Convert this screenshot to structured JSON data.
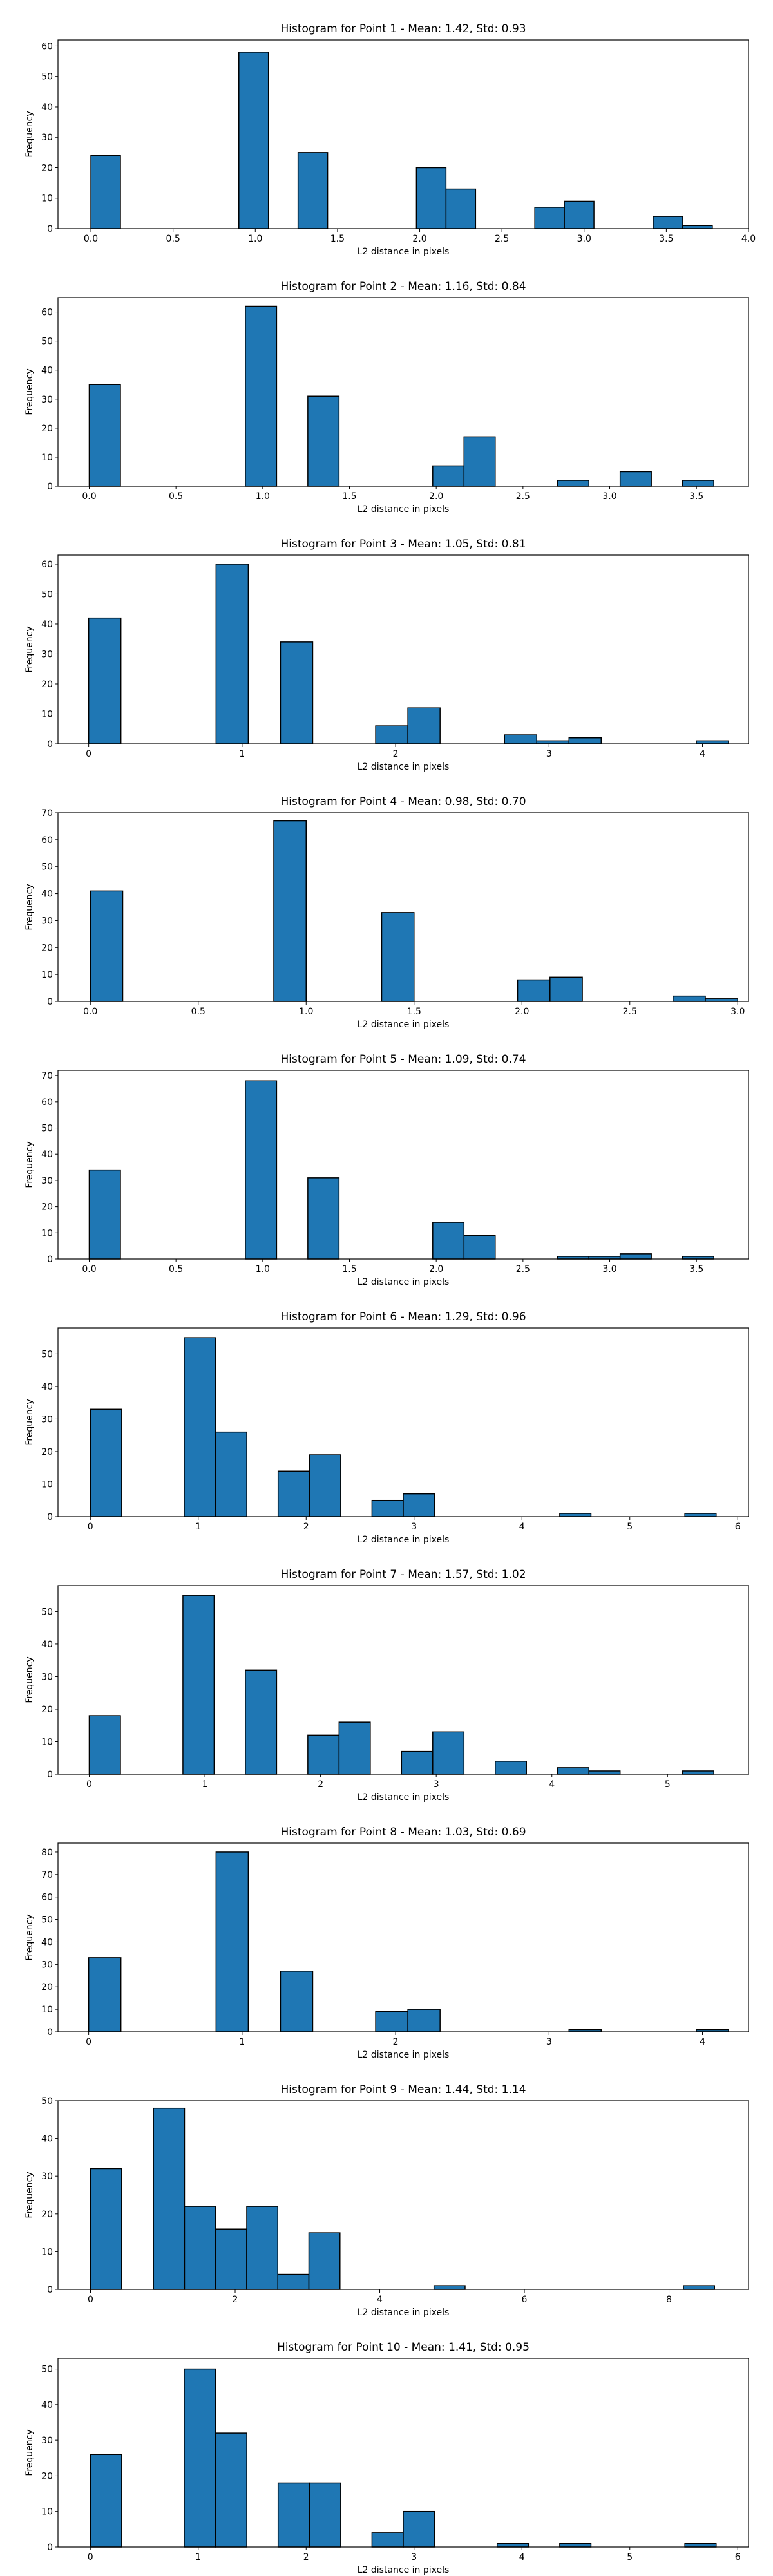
{
  "colors": {
    "bar_fill": "#1f77b4",
    "bar_edge": "#000000"
  },
  "chart_data": [
    {
      "type": "bar",
      "title": "Histogram for Point 1 - Mean: 1.42, Std: 0.93",
      "xlabel": "L2 distance in pixels",
      "ylabel": "Frequency",
      "xlim": [
        -0.2,
        4.0
      ],
      "ylim": [
        0,
        62
      ],
      "xticks": [
        0.0,
        0.5,
        1.0,
        1.5,
        2.0,
        2.5,
        3.0,
        3.5,
        4.0
      ],
      "xtick_labels": [
        "0.0",
        "0.5",
        "1.0",
        "1.5",
        "2.0",
        "2.5",
        "3.0",
        "3.5",
        "4.0"
      ],
      "yticks": [
        0,
        10,
        20,
        30,
        40,
        50,
        60
      ],
      "ytick_labels": [
        "0",
        "10",
        "20",
        "30",
        "40",
        "50",
        "60"
      ],
      "bins": [
        {
          "x0": 0.0,
          "x1": 0.18,
          "value": 24
        },
        {
          "x0": 0.9,
          "x1": 1.08,
          "value": 58
        },
        {
          "x0": 1.26,
          "x1": 1.44,
          "value": 25
        },
        {
          "x0": 1.98,
          "x1": 2.16,
          "value": 20
        },
        {
          "x0": 2.16,
          "x1": 2.34,
          "value": 13
        },
        {
          "x0": 2.7,
          "x1": 2.88,
          "value": 7
        },
        {
          "x0": 2.88,
          "x1": 3.06,
          "value": 9
        },
        {
          "x0": 3.42,
          "x1": 3.6,
          "value": 4
        },
        {
          "x0": 3.6,
          "x1": 3.78,
          "value": 1
        }
      ]
    },
    {
      "type": "bar",
      "title": "Histogram for Point 2 - Mean: 1.16, Std: 0.84",
      "xlabel": "L2 distance in pixels",
      "ylabel": "Frequency",
      "xlim": [
        -0.18,
        3.8
      ],
      "ylim": [
        0,
        65
      ],
      "xticks": [
        0.0,
        0.5,
        1.0,
        1.5,
        2.0,
        2.5,
        3.0,
        3.5
      ],
      "xtick_labels": [
        "0.0",
        "0.5",
        "1.0",
        "1.5",
        "2.0",
        "2.5",
        "3.0",
        "3.5"
      ],
      "yticks": [
        0,
        10,
        20,
        30,
        40,
        50,
        60
      ],
      "ytick_labels": [
        "0",
        "10",
        "20",
        "30",
        "40",
        "50",
        "60"
      ],
      "bins": [
        {
          "x0": 0.0,
          "x1": 0.18,
          "value": 35
        },
        {
          "x0": 0.9,
          "x1": 1.08,
          "value": 62
        },
        {
          "x0": 1.26,
          "x1": 1.44,
          "value": 31
        },
        {
          "x0": 1.98,
          "x1": 2.16,
          "value": 7
        },
        {
          "x0": 2.16,
          "x1": 2.34,
          "value": 17
        },
        {
          "x0": 2.7,
          "x1": 2.88,
          "value": 2
        },
        {
          "x0": 3.06,
          "x1": 3.24,
          "value": 5
        },
        {
          "x0": 3.42,
          "x1": 3.6,
          "value": 2
        }
      ]
    },
    {
      "type": "bar",
      "title": "Histogram for Point 3 - Mean: 1.05, Std: 0.81",
      "xlabel": "L2 distance in pixels",
      "ylabel": "Frequency",
      "xlim": [
        -0.2,
        4.3
      ],
      "ylim": [
        0,
        63
      ],
      "xticks": [
        0,
        1,
        2,
        3,
        4
      ],
      "xtick_labels": [
        "0",
        "1",
        "2",
        "3",
        "4"
      ],
      "yticks": [
        0,
        10,
        20,
        30,
        40,
        50,
        60
      ],
      "ytick_labels": [
        "0",
        "10",
        "20",
        "30",
        "40",
        "50",
        "60"
      ],
      "bins": [
        {
          "x0": 0.0,
          "x1": 0.21,
          "value": 42
        },
        {
          "x0": 0.83,
          "x1": 1.04,
          "value": 60
        },
        {
          "x0": 1.25,
          "x1": 1.46,
          "value": 34
        },
        {
          "x0": 1.87,
          "x1": 2.08,
          "value": 6
        },
        {
          "x0": 2.08,
          "x1": 2.29,
          "value": 12
        },
        {
          "x0": 2.71,
          "x1": 2.92,
          "value": 3
        },
        {
          "x0": 2.92,
          "x1": 3.13,
          "value": 1
        },
        {
          "x0": 3.13,
          "x1": 3.34,
          "value": 2
        },
        {
          "x0": 3.96,
          "x1": 4.17,
          "value": 1
        }
      ]
    },
    {
      "type": "bar",
      "title": "Histogram for Point 4 - Mean: 0.98, Std: 0.70",
      "xlabel": "L2 distance in pixels",
      "ylabel": "Frequency",
      "xlim": [
        -0.15,
        3.05
      ],
      "ylim": [
        0,
        70
      ],
      "xticks": [
        0.0,
        0.5,
        1.0,
        1.5,
        2.0,
        2.5,
        3.0
      ],
      "xtick_labels": [
        "0.0",
        "0.5",
        "1.0",
        "1.5",
        "2.0",
        "2.5",
        "3.0"
      ],
      "yticks": [
        0,
        10,
        20,
        30,
        40,
        50,
        60,
        70
      ],
      "ytick_labels": [
        "0",
        "10",
        "20",
        "30",
        "40",
        "50",
        "60",
        "70"
      ],
      "bins": [
        {
          "x0": 0.0,
          "x1": 0.15,
          "value": 41
        },
        {
          "x0": 0.85,
          "x1": 1.0,
          "value": 67
        },
        {
          "x0": 1.35,
          "x1": 1.5,
          "value": 33
        },
        {
          "x0": 1.98,
          "x1": 2.13,
          "value": 8
        },
        {
          "x0": 2.13,
          "x1": 2.28,
          "value": 9
        },
        {
          "x0": 2.7,
          "x1": 2.85,
          "value": 2
        },
        {
          "x0": 2.85,
          "x1": 3.0,
          "value": 1
        }
      ]
    },
    {
      "type": "bar",
      "title": "Histogram for Point 5 - Mean: 1.09, Std: 0.74",
      "xlabel": "L2 distance in pixels",
      "ylabel": "Frequency",
      "xlim": [
        -0.18,
        3.8
      ],
      "ylim": [
        0,
        72
      ],
      "xticks": [
        0.0,
        0.5,
        1.0,
        1.5,
        2.0,
        2.5,
        3.0,
        3.5
      ],
      "xtick_labels": [
        "0.0",
        "0.5",
        "1.0",
        "1.5",
        "2.0",
        "2.5",
        "3.0",
        "3.5"
      ],
      "yticks": [
        0,
        10,
        20,
        30,
        40,
        50,
        60,
        70
      ],
      "ytick_labels": [
        "0",
        "10",
        "20",
        "30",
        "40",
        "50",
        "60",
        "70"
      ],
      "bins": [
        {
          "x0": 0.0,
          "x1": 0.18,
          "value": 34
        },
        {
          "x0": 0.9,
          "x1": 1.08,
          "value": 68
        },
        {
          "x0": 1.26,
          "x1": 1.44,
          "value": 31
        },
        {
          "x0": 1.98,
          "x1": 2.16,
          "value": 14
        },
        {
          "x0": 2.16,
          "x1": 2.34,
          "value": 9
        },
        {
          "x0": 2.7,
          "x1": 2.88,
          "value": 1
        },
        {
          "x0": 2.88,
          "x1": 3.06,
          "value": 1
        },
        {
          "x0": 3.06,
          "x1": 3.24,
          "value": 2
        },
        {
          "x0": 3.42,
          "x1": 3.6,
          "value": 1
        }
      ]
    },
    {
      "type": "bar",
      "title": "Histogram for Point 6 - Mean: 1.29, Std: 0.96",
      "xlabel": "L2 distance in pixels",
      "ylabel": "Frequency",
      "xlim": [
        -0.3,
        6.1
      ],
      "ylim": [
        0,
        58
      ],
      "xticks": [
        0,
        1,
        2,
        3,
        4,
        5,
        6
      ],
      "xtick_labels": [
        "0",
        "1",
        "2",
        "3",
        "4",
        "5",
        "6"
      ],
      "yticks": [
        0,
        10,
        20,
        30,
        40,
        50
      ],
      "ytick_labels": [
        "0",
        "10",
        "20",
        "30",
        "40",
        "50"
      ],
      "bins": [
        {
          "x0": 0.0,
          "x1": 0.29,
          "value": 33
        },
        {
          "x0": 0.87,
          "x1": 1.16,
          "value": 55
        },
        {
          "x0": 1.16,
          "x1": 1.45,
          "value": 26
        },
        {
          "x0": 1.74,
          "x1": 2.03,
          "value": 14
        },
        {
          "x0": 2.03,
          "x1": 2.32,
          "value": 19
        },
        {
          "x0": 2.61,
          "x1": 2.9,
          "value": 5
        },
        {
          "x0": 2.9,
          "x1": 3.19,
          "value": 7
        },
        {
          "x0": 4.35,
          "x1": 4.64,
          "value": 1
        },
        {
          "x0": 5.51,
          "x1": 5.8,
          "value": 1
        }
      ]
    },
    {
      "type": "bar",
      "title": "Histogram for Point 7 - Mean: 1.57, Std: 1.02",
      "xlabel": "L2 distance in pixels",
      "ylabel": "Frequency",
      "xlim": [
        -0.27,
        5.7
      ],
      "ylim": [
        0,
        58
      ],
      "xticks": [
        0,
        1,
        2,
        3,
        4,
        5
      ],
      "xtick_labels": [
        "0",
        "1",
        "2",
        "3",
        "4",
        "5"
      ],
      "yticks": [
        0,
        10,
        20,
        30,
        40,
        50
      ],
      "ytick_labels": [
        "0",
        "10",
        "20",
        "30",
        "40",
        "50"
      ],
      "bins": [
        {
          "x0": 0.0,
          "x1": 0.27,
          "value": 18
        },
        {
          "x0": 0.81,
          "x1": 1.08,
          "value": 55
        },
        {
          "x0": 1.35,
          "x1": 1.62,
          "value": 32
        },
        {
          "x0": 1.89,
          "x1": 2.16,
          "value": 12
        },
        {
          "x0": 2.16,
          "x1": 2.43,
          "value": 16
        },
        {
          "x0": 2.7,
          "x1": 2.97,
          "value": 7
        },
        {
          "x0": 2.97,
          "x1": 3.24,
          "value": 13
        },
        {
          "x0": 3.51,
          "x1": 3.78,
          "value": 4
        },
        {
          "x0": 4.05,
          "x1": 4.32,
          "value": 2
        },
        {
          "x0": 4.32,
          "x1": 4.59,
          "value": 1
        },
        {
          "x0": 5.13,
          "x1": 5.4,
          "value": 1
        }
      ]
    },
    {
      "type": "bar",
      "title": "Histogram for Point 8 - Mean: 1.03, Std: 0.69",
      "xlabel": "L2 distance in pixels",
      "ylabel": "Frequency",
      "xlim": [
        -0.2,
        4.3
      ],
      "ylim": [
        0,
        84
      ],
      "xticks": [
        0,
        1,
        2,
        3,
        4
      ],
      "xtick_labels": [
        "0",
        "1",
        "2",
        "3",
        "4"
      ],
      "yticks": [
        0,
        10,
        20,
        30,
        40,
        50,
        60,
        70,
        80
      ],
      "ytick_labels": [
        "0",
        "10",
        "20",
        "30",
        "40",
        "50",
        "60",
        "70",
        "80"
      ],
      "bins": [
        {
          "x0": 0.0,
          "x1": 0.21,
          "value": 33
        },
        {
          "x0": 0.83,
          "x1": 1.04,
          "value": 80
        },
        {
          "x0": 1.25,
          "x1": 1.46,
          "value": 27
        },
        {
          "x0": 1.87,
          "x1": 2.08,
          "value": 9
        },
        {
          "x0": 2.08,
          "x1": 2.29,
          "value": 10
        },
        {
          "x0": 3.13,
          "x1": 3.34,
          "value": 1
        },
        {
          "x0": 3.96,
          "x1": 4.17,
          "value": 1
        }
      ]
    },
    {
      "type": "bar",
      "title": "Histogram for Point 9 - Mean: 1.44, Std: 1.14",
      "xlabel": "L2 distance in pixels",
      "ylabel": "Frequency",
      "xlim": [
        -0.45,
        9.1
      ],
      "ylim": [
        0,
        50
      ],
      "xticks": [
        0,
        2,
        4,
        6,
        8
      ],
      "xtick_labels": [
        "0",
        "2",
        "4",
        "6",
        "8"
      ],
      "yticks": [
        0,
        10,
        20,
        30,
        40,
        50
      ],
      "ytick_labels": [
        "0",
        "10",
        "20",
        "30",
        "40",
        "50"
      ],
      "bins": [
        {
          "x0": 0.0,
          "x1": 0.43,
          "value": 32
        },
        {
          "x0": 0.87,
          "x1": 1.3,
          "value": 48
        },
        {
          "x0": 1.3,
          "x1": 1.73,
          "value": 22
        },
        {
          "x0": 1.73,
          "x1": 2.16,
          "value": 16
        },
        {
          "x0": 2.16,
          "x1": 2.59,
          "value": 22
        },
        {
          "x0": 2.59,
          "x1": 3.02,
          "value": 4
        },
        {
          "x0": 3.02,
          "x1": 3.45,
          "value": 15
        },
        {
          "x0": 4.75,
          "x1": 5.18,
          "value": 1
        },
        {
          "x0": 8.2,
          "x1": 8.63,
          "value": 1
        }
      ]
    },
    {
      "type": "bar",
      "title": "Histogram for Point 10 - Mean: 1.41, Std: 0.95",
      "xlabel": "L2 distance in pixels",
      "ylabel": "Frequency",
      "xlim": [
        -0.3,
        6.1
      ],
      "ylim": [
        0,
        53
      ],
      "xticks": [
        0,
        1,
        2,
        3,
        4,
        5,
        6
      ],
      "xtick_labels": [
        "0",
        "1",
        "2",
        "3",
        "4",
        "5",
        "6"
      ],
      "yticks": [
        0,
        10,
        20,
        30,
        40,
        50
      ],
      "ytick_labels": [
        "0",
        "10",
        "20",
        "30",
        "40",
        "50"
      ],
      "bins": [
        {
          "x0": 0.0,
          "x1": 0.29,
          "value": 26
        },
        {
          "x0": 0.87,
          "x1": 1.16,
          "value": 50
        },
        {
          "x0": 1.16,
          "x1": 1.45,
          "value": 32
        },
        {
          "x0": 1.74,
          "x1": 2.03,
          "value": 18
        },
        {
          "x0": 2.03,
          "x1": 2.32,
          "value": 18
        },
        {
          "x0": 2.61,
          "x1": 2.9,
          "value": 4
        },
        {
          "x0": 2.9,
          "x1": 3.19,
          "value": 10
        },
        {
          "x0": 3.77,
          "x1": 4.06,
          "value": 1
        },
        {
          "x0": 4.35,
          "x1": 4.64,
          "value": 1
        },
        {
          "x0": 5.51,
          "x1": 5.8,
          "value": 1
        }
      ]
    }
  ]
}
